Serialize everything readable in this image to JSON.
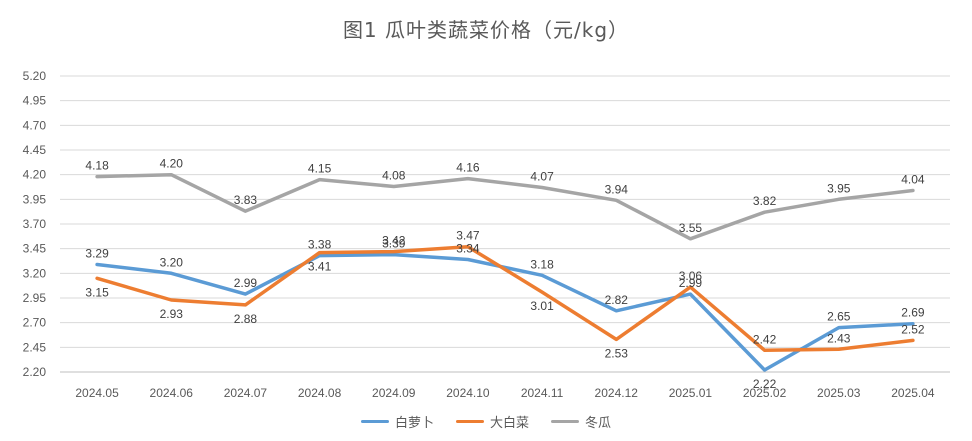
{
  "chart_data": {
    "type": "line",
    "title": "图1  瓜叶类蔬菜价格（元/kg）",
    "categories": [
      "2024.05",
      "2024.06",
      "2024.07",
      "2024.08",
      "2024.09",
      "2024.10",
      "2024.11",
      "2024.12",
      "2025.01",
      "2025.02",
      "2025.03",
      "2025.04"
    ],
    "ylim": [
      2.2,
      5.2
    ],
    "yticks": [
      "2.20",
      "2.45",
      "2.70",
      "2.95",
      "3.20",
      "3.45",
      "3.70",
      "3.95",
      "4.20",
      "4.45",
      "4.70",
      "4.95",
      "5.20"
    ],
    "grid": true,
    "legend_position": "bottom",
    "series": [
      {
        "name": "白萝卜",
        "color": "#5b9bd5",
        "values": [
          3.29,
          3.2,
          2.99,
          3.38,
          3.39,
          3.34,
          3.18,
          2.82,
          2.99,
          2.22,
          2.65,
          2.69
        ],
        "labels": [
          "3.29",
          "3.20",
          "2.99",
          "3.38",
          "3.39",
          "3.34",
          "3.18",
          "2.82",
          "2.99",
          "2.22",
          "2.65",
          "2.69"
        ]
      },
      {
        "name": "大白菜",
        "color": "#ed7d31",
        "values": [
          3.15,
          2.93,
          2.88,
          3.41,
          3.42,
          3.47,
          3.01,
          2.53,
          3.06,
          2.42,
          2.43,
          2.52
        ],
        "labels": [
          "3.15",
          "2.93",
          "2.88",
          "3.41",
          "3.42",
          "3.47",
          "3.01",
          "2.53",
          "3.06",
          "2.42",
          "2.43",
          "2.52"
        ]
      },
      {
        "name": "冬瓜",
        "color": "#a5a5a5",
        "values": [
          4.18,
          4.2,
          3.83,
          4.15,
          4.08,
          4.16,
          4.07,
          3.94,
          3.55,
          3.82,
          3.95,
          4.04
        ],
        "labels": [
          "4.18",
          "4.20",
          "3.83",
          "4.15",
          "4.08",
          "4.16",
          "4.07",
          "3.94",
          "3.55",
          "3.82",
          "3.95",
          "4.04"
        ]
      }
    ]
  }
}
